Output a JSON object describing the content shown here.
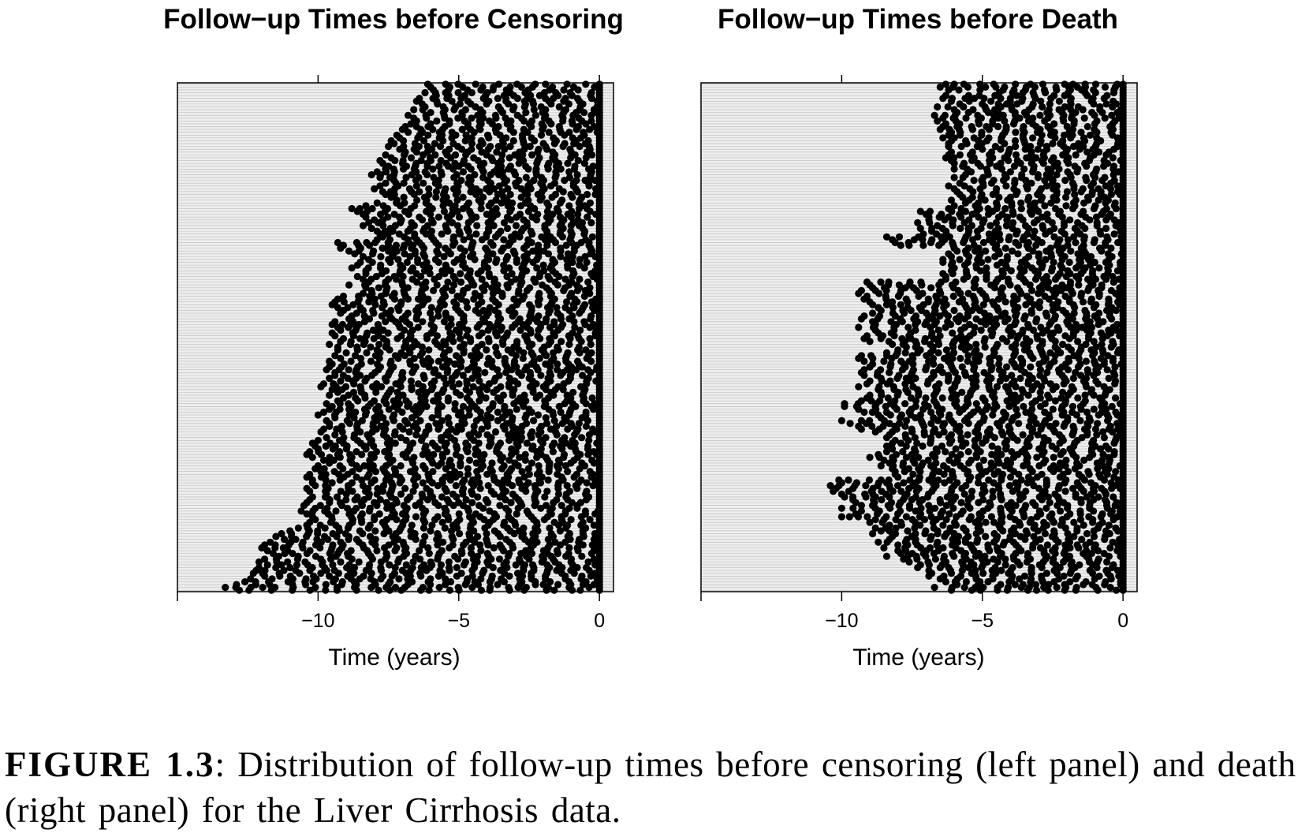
{
  "colors": {
    "background": "#ffffff",
    "panel_fill": "#ededed",
    "grid_line": "#bdbdbd",
    "marker": "#000000"
  },
  "caption": {
    "label": "FIGURE 1.3",
    "text": ": Distribution of follow-up times before censoring (left panel) and death (right panel) for the Liver Cirrhosis data."
  },
  "chart_data": [
    {
      "type": "scatter",
      "title": "Follow−up Times before Censoring",
      "xlabel": "Time (years)",
      "ylabel": "",
      "xlim": [
        -15,
        0.5
      ],
      "x_ticks": [
        -10,
        -5,
        0
      ],
      "x_tick_labels": [
        "−10",
        "−5",
        "0"
      ],
      "n_rows": 180,
      "grid": "horizontal lines, one per subject",
      "marker": "filled circle",
      "description_of_marks": "Each subject row shows black dots at its visit times, from the start of follow-up (leftmost dot) up to the censoring time at 0.",
      "row_start_times": [
        -6.1,
        -6.0,
        -5.9,
        -6.2,
        -5.8,
        -6.4,
        -6.5,
        -6.3,
        -6.2,
        -6.6,
        -6.0,
        -6.8,
        -6.6,
        -6.5,
        -6.7,
        -6.9,
        -7.0,
        -6.8,
        -7.2,
        -7.1,
        -7.4,
        -7.3,
        -7.5,
        -7.1,
        -6.9,
        -7.6,
        -7.4,
        -7.8,
        -7.7,
        -7.5,
        -7.6,
        -7.9,
        -8.1,
        -7.8,
        -7.3,
        -7.6,
        -7.8,
        -8.0,
        -7.7,
        -7.6,
        -7.4,
        -7.2,
        -7.9,
        -8.3,
        -8.8,
        -8.6,
        -8.4,
        -8.3,
        -8.0,
        -8.2,
        -8.4,
        -8.1,
        -7.9,
        -7.8,
        -7.7,
        -7.9,
        -9.3,
        -9.1,
        -9.2,
        -8.9,
        -8.7,
        -8.4,
        -8.2,
        -8.5,
        -8.6,
        -8.8,
        -8.3,
        -8.3,
        -8.6,
        -8.4,
        -8.2,
        -8.9,
        -8.3,
        -8.1,
        -8.4,
        -9.1,
        -9.3,
        -9.4,
        -9.5,
        -9.3,
        -9.1,
        -9.2,
        -8.8,
        -8.9,
        -9.4,
        -9.5,
        -9.3,
        -9.2,
        -9.5,
        -9.4,
        -9.1,
        -9.2,
        -9.6,
        -9.3,
        -9.3,
        -9.0,
        -9.4,
        -9.2,
        -9.6,
        -9.5,
        -9.6,
        -9.7,
        -9.4,
        -9.4,
        -9.6,
        -9.2,
        -9.8,
        -9.9,
        -9.5,
        -9.3,
        -9.6,
        -9.1,
        -9.3,
        -9.7,
        -9.5,
        -9.6,
        -9.8,
        -10.0,
        -9.4,
        -9.7,
        -9.6,
        -9.6,
        -9.8,
        -9.9,
        -9.4,
        -9.7,
        -10.0,
        -10.2,
        -10.1,
        -10.0,
        -10.3,
        -10.4,
        -10.2,
        -9.8,
        -9.6,
        -10.0,
        -10.1,
        -9.9,
        -10.3,
        -10.4,
        -10.2,
        -10.2,
        -10.1,
        -10.4,
        -10.3,
        -9.7,
        -10.2,
        -10.3,
        -10.4,
        -10.5,
        -10.1,
        -10.6,
        -10.4,
        -10.2,
        -10.1,
        -10.3,
        -10.4,
        -10.7,
        -11.0,
        -11.3,
        -11.5,
        -11.2,
        -11.7,
        -11.9,
        -12.0,
        -11.8,
        -11.6,
        -11.4,
        -11.9,
        -12.1,
        -11.8,
        -12.1,
        -12.2,
        -12.3,
        -11.9,
        -12.4,
        -12.6,
        -12.9,
        -13.3,
        -12.8
      ],
      "visit_interval_years": 0.5,
      "censoring_time": 0
    },
    {
      "type": "scatter",
      "title": "Follow−up Times before Death",
      "xlabel": "Time (years)",
      "ylabel": "",
      "xlim": [
        -15,
        0.5
      ],
      "x_ticks": [
        -10,
        -5,
        0
      ],
      "x_tick_labels": [
        "−10",
        "−5",
        "0"
      ],
      "n_rows": 180,
      "grid": "horizontal lines, one per subject",
      "marker": "filled circle",
      "description_of_marks": "Each subject row shows black dots at its visit times, from the start of follow-up (leftmost dot) up to death at 0.",
      "row_start_times": [
        -6.3,
        -6.5,
        -6.2,
        -4.4,
        -6.3,
        -6.4,
        -6.1,
        -5.8,
        -6.6,
        -6.0,
        -5.9,
        -6.7,
        -6.4,
        -6.6,
        -6.3,
        -6.4,
        -6.5,
        -6.1,
        -6.2,
        -6.4,
        -6.1,
        -6.2,
        -6.2,
        -5.0,
        -6.1,
        -6.2,
        -6.3,
        -6.1,
        -6.0,
        -5.7,
        -6.0,
        -5.4,
        -5.6,
        -6.0,
        -5.3,
        -5.8,
        -6.2,
        -6.0,
        -5.9,
        -5.8,
        -5.7,
        -6.1,
        -5.6,
        -6.0,
        -6.2,
        -7.2,
        -7.0,
        -6.9,
        -6.9,
        -7.3,
        -6.6,
        -7.2,
        -6.8,
        -7.1,
        -8.4,
        -8.2,
        -8.1,
        -7.9,
        -6.0,
        -5.9,
        -6.2,
        -6.1,
        -6.4,
        -6.4,
        -6.1,
        -6.0,
        -6.1,
        -6.4,
        -6.3,
        -6.3,
        -9.1,
        -9.0,
        -8.9,
        -9.3,
        -9.4,
        -9.1,
        -9.2,
        -9.0,
        -8.9,
        -8.7,
        -8.6,
        -8.9,
        -9.2,
        -9.3,
        -8.9,
        -8.8,
        -9.4,
        -8.8,
        -8.7,
        -9.1,
        -9.2,
        -9.0,
        -8.2,
        -7.7,
        -8.0,
        -8.4,
        -9.3,
        -9.4,
        -9.2,
        -8.9,
        -9.0,
        -9.2,
        -9.3,
        -9.2,
        -8.6,
        -9.0,
        -9.1,
        -9.4,
        -8.7,
        -8.6,
        -9.0,
        -9.1,
        -9.3,
        -9.9,
        -9.9,
        -9.4,
        -9.2,
        -8.7,
        -8.6,
        -10.0,
        -9.7,
        -9.4,
        -9.3,
        -8.8,
        -8.3,
        -8.4,
        -8.1,
        -8.2,
        -8.4,
        -8.2,
        -8.4,
        -8.7,
        -9.0,
        -8.5,
        -8.3,
        -8.6,
        -8.2,
        -8.1,
        -8.1,
        -8.0,
        -10.1,
        -10.0,
        -10.4,
        -10.2,
        -10.3,
        -10.0,
        -9.9,
        -9.6,
        -9.5,
        -9.3,
        -10.0,
        -9.3,
        -9.5,
        -10.0,
        -8.8,
        -9.0,
        -8.3,
        -8.8,
        -8.6,
        -8.9,
        -8.2,
        -8.3,
        -8.7,
        -8.0,
        -8.5,
        -8.0,
        -7.9,
        -8.4,
        -7.8,
        -7.6,
        -7.2,
        -7.3,
        -6.9,
        -6.8,
        -6.9,
        -6.5,
        -6.3,
        -5.9,
        -6.7,
        -6.1
      ],
      "visit_interval_years": 0.5,
      "event_time": 0
    }
  ]
}
